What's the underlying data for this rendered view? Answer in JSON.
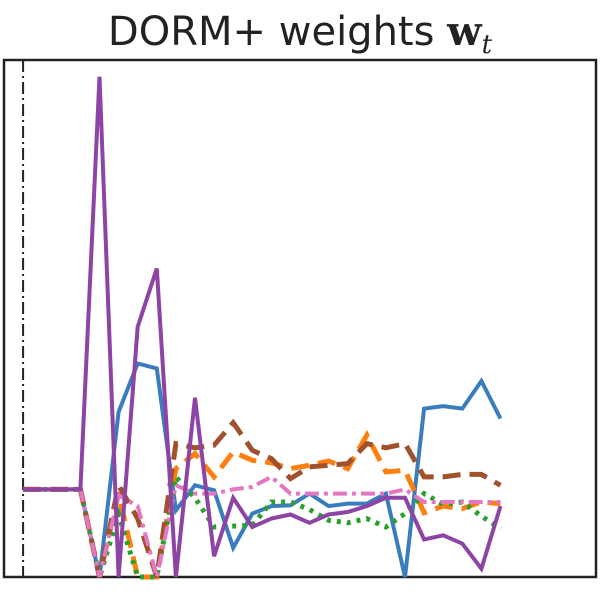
{
  "chart_data": {
    "type": "line",
    "title": "DORM+ weights",
    "title_symbol": "w",
    "title_subscript": "t",
    "xlabel": "",
    "ylabel": "",
    "xlim": [
      -1,
      30
    ],
    "ylim": [
      0,
      0.62
    ],
    "grid": false,
    "legend": "none",
    "vline_x": 0,
    "x": [
      0,
      1,
      2,
      3,
      4,
      5,
      6,
      7,
      8,
      9,
      10,
      11,
      12,
      13,
      14,
      15,
      16,
      17,
      18,
      19,
      20,
      21,
      22,
      23,
      24,
      25,
      26,
      27,
      28,
      29
    ],
    "series": [
      {
        "color": "#3a7dbf",
        "dash": "solid",
        "width": 4,
        "values": [
          0.105,
          0.105,
          0.105,
          0.105,
          0.0,
          0.198,
          0.256,
          0.25,
          0.08,
          0.11,
          0.104,
          0.035,
          0.076,
          0.085,
          0.086,
          0.1,
          0.085,
          0.088,
          0.088,
          0.1,
          0.0,
          0.202,
          0.205,
          0.202,
          0.235,
          0.19,
          null,
          null,
          null,
          null
        ]
      },
      {
        "color": "#ff7f0e",
        "dash": "dashed",
        "width": 5,
        "values": [
          0.105,
          0.105,
          0.105,
          0.105,
          0.0,
          0.1,
          0.0,
          0.0,
          0.13,
          0.148,
          0.12,
          0.15,
          0.14,
          0.137,
          0.13,
          0.134,
          0.139,
          0.13,
          0.17,
          0.126,
          0.128,
          0.077,
          0.085,
          0.082,
          0.09,
          0.088,
          null,
          null,
          null,
          null
        ]
      },
      {
        "color": "#2ca02c",
        "dash": "dotted",
        "width": 5,
        "values": [
          0.105,
          0.105,
          0.105,
          0.105,
          0.0,
          0.075,
          0.0,
          0.0,
          0.12,
          0.095,
          0.06,
          0.061,
          0.062,
          0.09,
          0.09,
          0.081,
          0.068,
          0.065,
          0.07,
          0.06,
          0.076,
          0.1,
          0.087,
          0.09,
          0.073,
          0.058,
          null,
          null,
          null,
          null
        ]
      },
      {
        "color": "#a0522d",
        "dash": "dashed",
        "width": 5,
        "values": [
          0.105,
          0.105,
          0.105,
          0.105,
          0.0,
          0.11,
          0.07,
          0.0,
          0.16,
          0.155,
          0.158,
          0.185,
          0.152,
          0.142,
          0.118,
          0.132,
          0.134,
          0.136,
          0.16,
          0.155,
          0.16,
          0.12,
          0.12,
          0.123,
          0.123,
          0.11,
          null,
          null,
          null,
          null
        ]
      },
      {
        "color": "#e377c2",
        "dash": "dashdot",
        "width": 4,
        "values": [
          0.105,
          0.105,
          0.105,
          0.105,
          0.0,
          0.098,
          0.085,
          0.0,
          0.11,
          0.1,
          0.1,
          0.105,
          0.108,
          0.12,
          0.1,
          0.1,
          0.1,
          0.1,
          0.1,
          0.1,
          0.105,
          0.09,
          0.09,
          0.09,
          0.09,
          0.09,
          null,
          null,
          null,
          null
        ]
      },
      {
        "color": "#8e44a4",
        "dash": "solid",
        "width": 4,
        "values": [
          0.105,
          0.105,
          0.105,
          0.105,
          0.6,
          0.0,
          0.3,
          0.37,
          0.0,
          0.215,
          0.025,
          0.095,
          0.06,
          0.07,
          0.075,
          0.065,
          0.075,
          0.078,
          0.085,
          0.095,
          0.095,
          0.045,
          0.05,
          0.04,
          0.01,
          0.085,
          null,
          null,
          null,
          null
        ]
      }
    ]
  }
}
